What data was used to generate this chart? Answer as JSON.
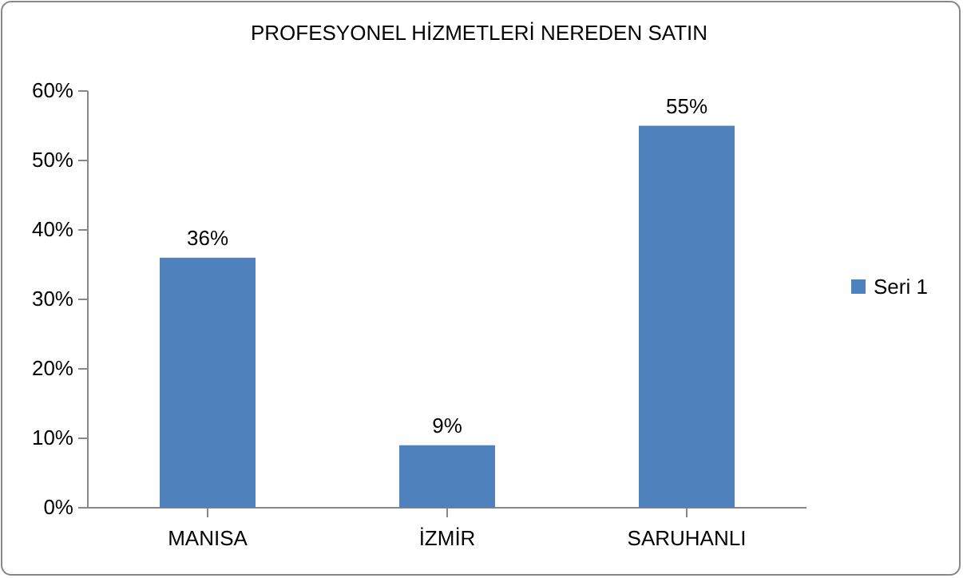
{
  "chart_data": {
    "type": "bar",
    "title": "PROFESYONEL HİZMETLERİ NEREDEN SATIN",
    "categories": [
      "MANISA",
      "İZMİR",
      "SARUHANLI"
    ],
    "series": [
      {
        "name": "Seri 1",
        "color": "#4f81bd",
        "values": [
          36,
          9,
          55
        ]
      }
    ],
    "value_labels": [
      "36%",
      "9%",
      "55%"
    ],
    "ylim": [
      0,
      60
    ],
    "yticks": [
      {
        "value": 0,
        "label": "0%"
      },
      {
        "value": 10,
        "label": "10%"
      },
      {
        "value": 20,
        "label": "20%"
      },
      {
        "value": 30,
        "label": "30%"
      },
      {
        "value": 40,
        "label": "40%"
      },
      {
        "value": 50,
        "label": "50%"
      },
      {
        "value": 60,
        "label": "60%"
      }
    ],
    "grid": false,
    "legend": "right"
  }
}
